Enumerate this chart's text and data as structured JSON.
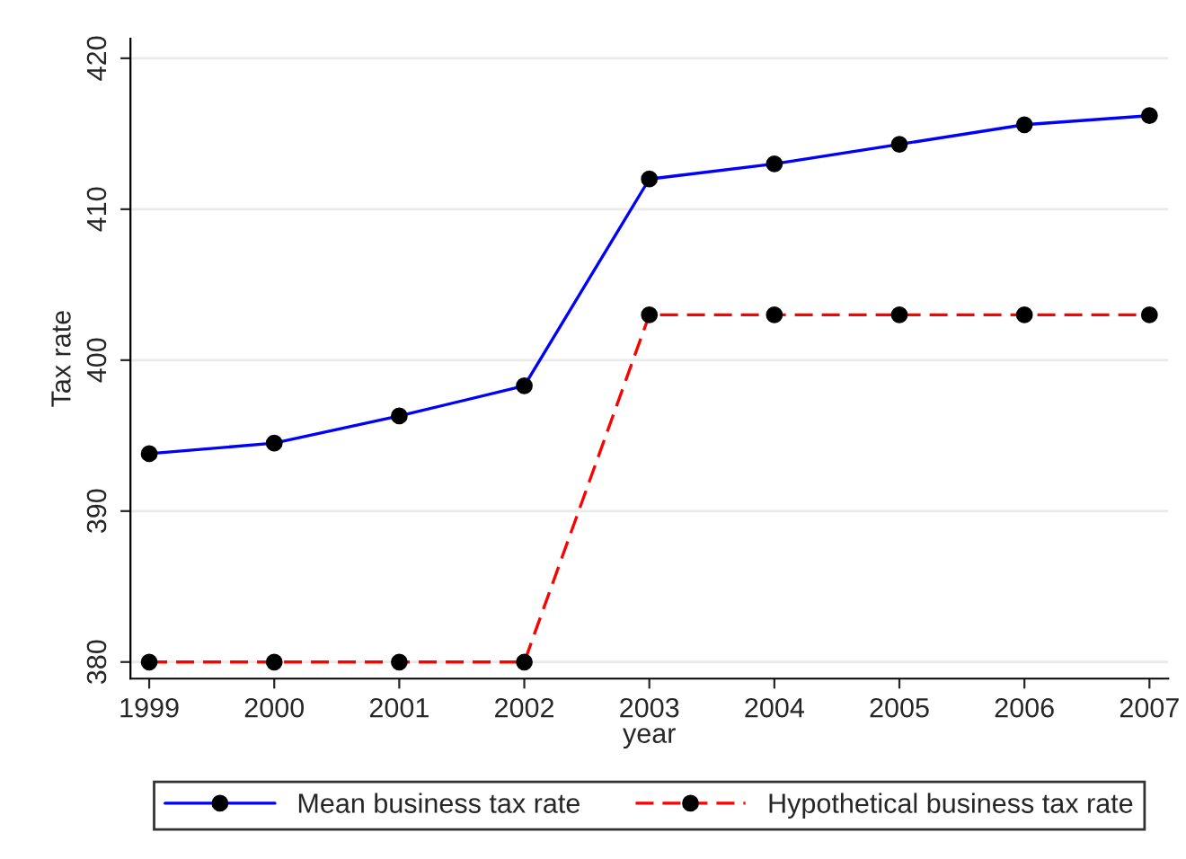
{
  "chart_data": {
    "type": "line",
    "xlabel": "year",
    "ylabel": "Tax rate",
    "x": [
      1999,
      2000,
      2001,
      2002,
      2003,
      2004,
      2005,
      2006,
      2007
    ],
    "series": [
      {
        "name": "Mean business tax rate",
        "color": "#0000ff",
        "line_style": "solid",
        "values": [
          393.8,
          394.5,
          396.3,
          398.3,
          412.0,
          413.0,
          414.3,
          415.6,
          416.2
        ]
      },
      {
        "name": "Hypothetical business tax rate",
        "color": "#ff0000",
        "line_style": "dashed",
        "values": [
          380,
          380,
          380,
          380,
          403,
          403,
          403,
          403,
          403
        ]
      }
    ],
    "xlim": [
      1998.85,
      2007.15
    ],
    "xticks": [
      1999,
      2000,
      2001,
      2002,
      2003,
      2004,
      2005,
      2006,
      2007
    ],
    "ylim": [
      378.9,
      421.3
    ],
    "yticks": [
      380,
      390,
      400,
      410,
      420
    ],
    "grid": "y",
    "legend": "bottom",
    "marker": "circle"
  }
}
